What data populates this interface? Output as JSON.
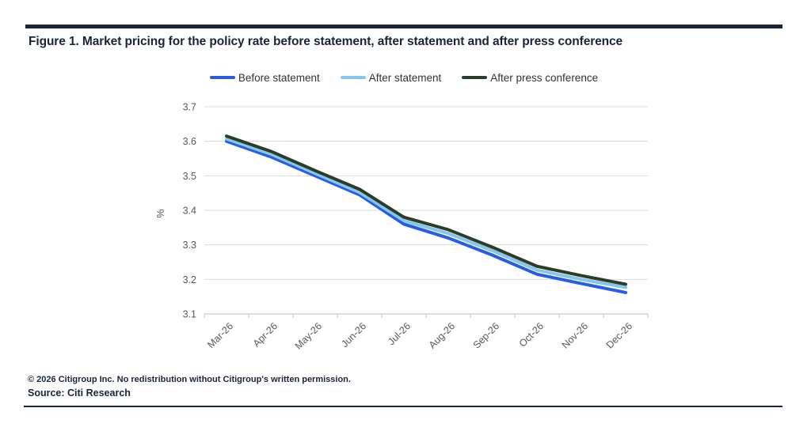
{
  "figure": {
    "title": "Figure 1. Market pricing for the policy rate before statement, after statement and after press conference",
    "footer_line1": "© 2026 Citigroup Inc. No redistribution without Citigroup's written permission.",
    "footer_line2": "Source: Citi Research"
  },
  "colors": {
    "navy": "#1a2439",
    "gridline": "#d9d9d9",
    "axis": "#bfbfbf",
    "tick_label": "#595959",
    "legend_text": "#333333"
  },
  "chart_data": {
    "type": "line",
    "title": "Figure 1. Market pricing for the policy rate before statement, after statement and after press conference",
    "categories": [
      "Mar-26",
      "Apr-26",
      "May-26",
      "Jun-26",
      "Jul-26",
      "Aug-26",
      "Sep-26",
      "Oct-26",
      "Nov-26",
      "Dec-26"
    ],
    "series": [
      {
        "name": "Before statement",
        "color": "#2b5be0",
        "values": [
          3.6,
          3.555,
          3.5,
          3.445,
          3.36,
          3.32,
          3.27,
          3.215,
          3.188,
          3.162
        ]
      },
      {
        "name": "After statement",
        "color": "#82c7f0",
        "values": [
          3.607,
          3.563,
          3.507,
          3.452,
          3.37,
          3.333,
          3.283,
          3.227,
          3.2,
          3.177
        ]
      },
      {
        "name": "After press conference",
        "color": "#2a3d2a",
        "values": [
          3.615,
          3.571,
          3.515,
          3.461,
          3.38,
          3.344,
          3.293,
          3.238,
          3.211,
          3.186
        ]
      }
    ],
    "xlabel": "",
    "ylabel": "%",
    "ylim": [
      3.1,
      3.7
    ],
    "ytick_step": 0.1,
    "ytick_labels": [
      "3.1",
      "3.2",
      "3.3",
      "3.4",
      "3.5",
      "3.6",
      "3.7"
    ],
    "grid": true,
    "legend_position": "top"
  }
}
